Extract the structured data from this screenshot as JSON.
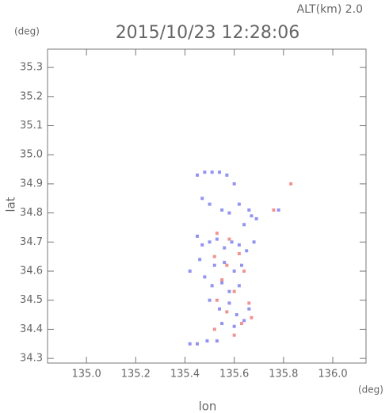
{
  "chart_data": {
    "type": "scatter",
    "title": "2015/10/23 12:28:06",
    "annotation": "ALT(km)  2.0",
    "y_unit": "(deg)",
    "x_unit": "(deg)",
    "x_label": "lon",
    "y_label": "lat",
    "xlim": [
      134.842,
      136.135
    ],
    "ylim": [
      34.284,
      35.363
    ],
    "xticks": [
      {
        "value": 135.0,
        "label": "135.0"
      },
      135.2,
      135.4,
      135.6,
      135.8,
      {
        "value": 136.0,
        "label": "136.0"
      }
    ],
    "yticks": [
      35.3,
      35.2,
      35.1,
      {
        "value": 35.0,
        "label": "35.0"
      },
      34.9,
      34.8,
      34.7,
      34.6,
      34.5,
      34.4,
      34.3
    ],
    "series": [
      {
        "color": "#8080ee",
        "x": [
          135.45,
          135.48,
          135.51,
          135.54,
          135.57,
          135.6,
          135.47,
          135.5,
          135.55,
          135.58,
          135.62,
          135.66,
          135.69,
          135.64,
          135.67,
          135.45,
          135.47,
          135.5,
          135.53,
          135.56,
          135.59,
          135.62,
          135.65,
          135.68,
          135.46,
          135.52,
          135.56,
          135.6,
          135.63,
          135.48,
          135.51,
          135.55,
          135.58,
          135.62,
          135.5,
          135.54,
          135.58,
          135.61,
          135.66,
          135.55,
          135.6,
          135.64,
          135.42,
          135.45,
          135.49,
          135.53,
          135.42,
          135.78
        ],
        "values": [
          34.93,
          34.94,
          34.94,
          34.94,
          34.93,
          34.9,
          34.85,
          34.83,
          34.81,
          34.8,
          34.83,
          34.81,
          34.78,
          34.76,
          34.79,
          34.72,
          34.69,
          34.7,
          34.71,
          34.68,
          34.7,
          34.69,
          34.67,
          34.7,
          34.64,
          34.62,
          34.63,
          34.6,
          34.62,
          34.58,
          34.55,
          34.56,
          34.53,
          34.55,
          34.5,
          34.47,
          34.49,
          34.45,
          34.47,
          34.42,
          34.41,
          34.43,
          34.35,
          34.35,
          34.36,
          34.36,
          34.6,
          34.81
        ]
      },
      {
        "color": "#ee8080",
        "x": [
          135.83,
          135.53,
          135.58,
          135.62,
          135.52,
          135.57,
          135.64,
          135.55,
          135.6,
          135.53,
          135.66,
          135.52,
          135.6,
          135.63,
          135.67,
          135.57,
          135.76
        ],
        "values": [
          34.9,
          34.73,
          34.71,
          34.66,
          34.65,
          34.62,
          34.6,
          34.57,
          34.53,
          34.5,
          34.49,
          34.4,
          34.38,
          34.42,
          34.44,
          34.46,
          34.81
        ]
      }
    ]
  }
}
